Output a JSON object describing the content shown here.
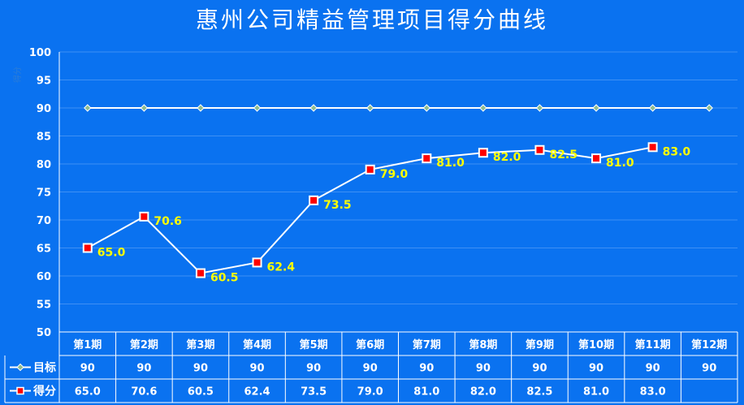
{
  "chart_data": {
    "type": "line",
    "title": "惠州公司精益管理项目得分曲线",
    "ylabel": "得分",
    "ylim": [
      50,
      100
    ],
    "yticks": [
      50,
      55,
      60,
      65,
      70,
      75,
      80,
      85,
      90,
      95,
      100
    ],
    "categories": [
      "第1期",
      "第2期",
      "第3期",
      "第4期",
      "第5期",
      "第6期",
      "第7期",
      "第8期",
      "第9期",
      "第10期",
      "第11期",
      "第12期"
    ],
    "series": [
      {
        "name": "目标",
        "values": [
          90,
          90,
          90,
          90,
          90,
          90,
          90,
          90,
          90,
          90,
          90,
          90
        ],
        "table_values": [
          "90",
          "90",
          "90",
          "90",
          "90",
          "90",
          "90",
          "90",
          "90",
          "90",
          "90",
          "90"
        ]
      },
      {
        "name": "得分",
        "values": [
          65.0,
          70.6,
          60.5,
          62.4,
          73.5,
          79.0,
          81.0,
          82.0,
          82.5,
          81.0,
          83.0,
          null
        ],
        "table_values": [
          "65.0",
          "70.6",
          "60.5",
          "62.4",
          "73.5",
          "79.0",
          "81.0",
          "82.0",
          "82.5",
          "81.0",
          "83.0",
          ""
        ],
        "data_labels": [
          "65.0",
          "70.6",
          "60.5",
          "62.4",
          "73.5",
          "79.0",
          "81.0",
          "82.0",
          "82.5",
          "81.0",
          "83.0"
        ]
      }
    ],
    "grid": true,
    "data_table": true
  },
  "colors": {
    "background": "#0a72f0",
    "line": "#ffffff",
    "score_marker_fill": "#ff0000",
    "target_marker_fill": "#8fbc8f",
    "label": "#ffff00"
  }
}
